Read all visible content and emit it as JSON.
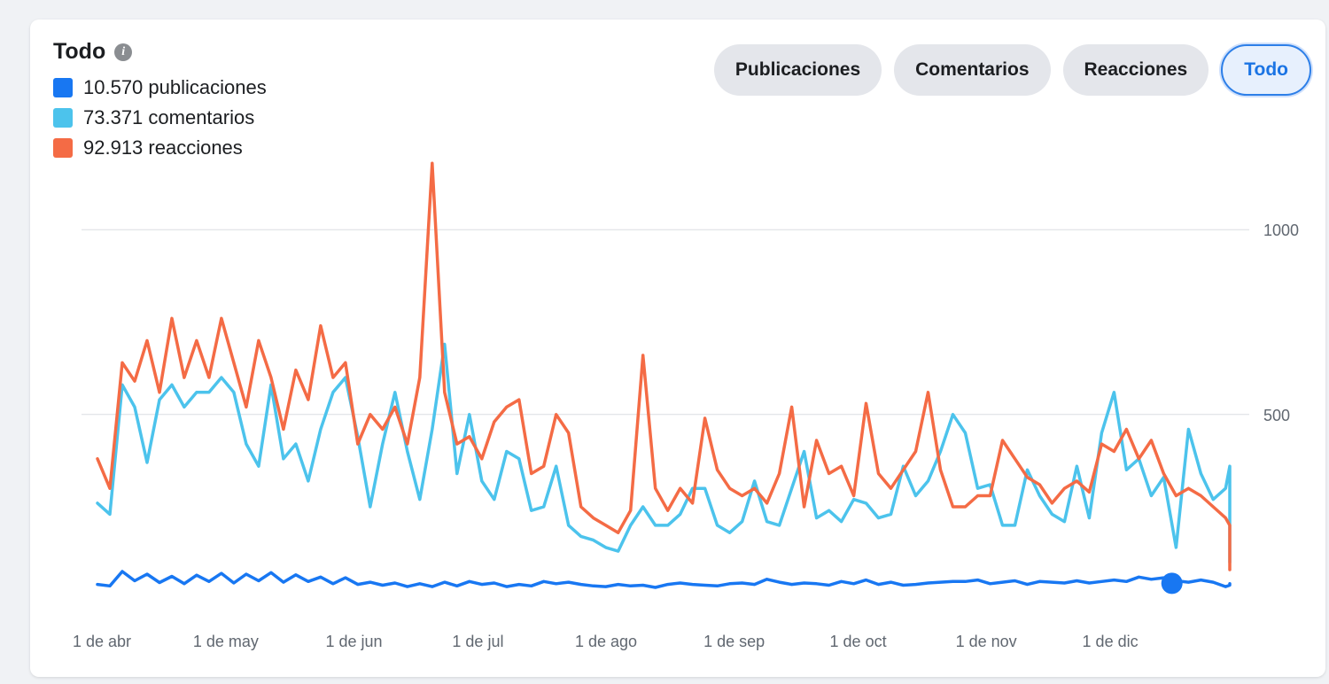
{
  "header": {
    "title": "Todo"
  },
  "legend": [
    {
      "label": "10.570 publicaciones",
      "color": "#1877f2"
    },
    {
      "label": "73.371 comentarios",
      "color": "#4cc3ec"
    },
    {
      "label": "92.913 reacciones",
      "color": "#f46b45"
    }
  ],
  "buttons": [
    {
      "label": "Publicaciones",
      "active": false
    },
    {
      "label": "Comentarios",
      "active": false
    },
    {
      "label": "Reacciones",
      "active": false
    },
    {
      "label": "Todo",
      "active": true
    }
  ],
  "chart_data": {
    "type": "line",
    "x_start": "1 de abr",
    "x_end": "31 de dic",
    "xticks": [
      "1 de abr",
      "1 de may",
      "1 de jun",
      "1 de jul",
      "1 de ago",
      "1 de sep",
      "1 de oct",
      "1 de nov",
      "1 de dic"
    ],
    "xtick_day_index": [
      0,
      30,
      61,
      91,
      122,
      153,
      183,
      214,
      244
    ],
    "yticks": [
      500,
      1000
    ],
    "ylim": [
      -40,
      1190
    ],
    "grid": true,
    "legend_position": "top-left",
    "highlight_point": {
      "series": "publicaciones",
      "x_day_index": 260,
      "y": 43
    },
    "series": [
      {
        "name": "publicaciones",
        "color": "#1877f2",
        "sample_every_days": 3,
        "values": [
          40,
          36,
          75,
          50,
          68,
          45,
          62,
          42,
          65,
          48,
          70,
          44,
          68,
          50,
          72,
          46,
          66,
          48,
          60,
          42,
          58,
          40,
          46,
          38,
          44,
          34,
          42,
          34,
          46,
          36,
          48,
          40,
          44,
          34,
          40,
          36,
          48,
          42,
          46,
          40,
          36,
          34,
          40,
          36,
          38,
          32,
          40,
          44,
          40,
          38,
          36,
          42,
          44,
          40,
          54,
          46,
          40,
          44,
          42,
          38,
          48,
          42,
          52,
          40,
          46,
          38,
          40,
          44,
          46,
          48,
          48,
          52,
          42,
          46,
          50,
          40,
          48,
          46,
          44,
          50,
          44,
          48,
          52,
          48,
          60,
          54,
          58,
          50,
          46,
          52,
          46,
          34,
          38,
          42
        ]
      },
      {
        "name": "comentarios",
        "color": "#4cc3ec",
        "sample_every_days": 3,
        "values": [
          260,
          230,
          580,
          520,
          370,
          540,
          580,
          520,
          560,
          560,
          600,
          560,
          420,
          360,
          580,
          380,
          420,
          320,
          460,
          560,
          600,
          440,
          250,
          420,
          560,
          400,
          270,
          460,
          690,
          340,
          500,
          320,
          270,
          400,
          380,
          240,
          250,
          360,
          200,
          170,
          160,
          140,
          130,
          200,
          250,
          200,
          200,
          230,
          300,
          300,
          200,
          180,
          210,
          320,
          210,
          200,
          300,
          400,
          220,
          240,
          210,
          270,
          260,
          220,
          230,
          360,
          280,
          320,
          400,
          500,
          450,
          300,
          310,
          200,
          200,
          350,
          280,
          230,
          210,
          360,
          220,
          450,
          560,
          350,
          380,
          280,
          330,
          140,
          460,
          340,
          270,
          300,
          360,
          100
        ]
      },
      {
        "name": "reacciones",
        "color": "#f46b45",
        "sample_every_days": 3,
        "values": [
          380,
          300,
          640,
          590,
          700,
          560,
          760,
          600,
          700,
          600,
          760,
          640,
          520,
          700,
          600,
          460,
          620,
          540,
          740,
          600,
          640,
          420,
          500,
          460,
          520,
          420,
          600,
          1180,
          560,
          420,
          440,
          380,
          480,
          520,
          540,
          340,
          360,
          500,
          450,
          250,
          220,
          200,
          180,
          240,
          660,
          300,
          240,
          300,
          260,
          490,
          350,
          300,
          280,
          300,
          260,
          340,
          520,
          250,
          430,
          340,
          360,
          280,
          530,
          340,
          300,
          350,
          400,
          560,
          350,
          250,
          250,
          280,
          280,
          430,
          380,
          330,
          310,
          260,
          300,
          320,
          290,
          420,
          400,
          460,
          380,
          430,
          340,
          280,
          300,
          280,
          250,
          220,
          200,
          80
        ]
      }
    ]
  }
}
